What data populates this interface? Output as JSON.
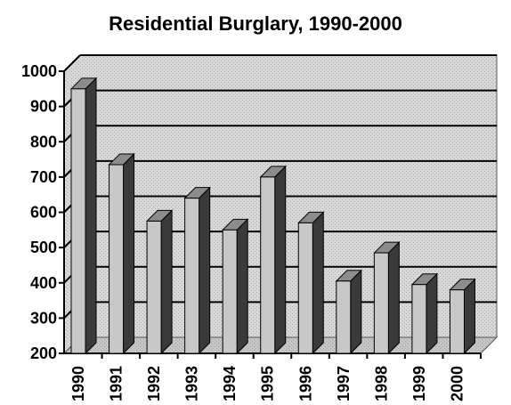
{
  "chart_data": {
    "type": "bar",
    "title": "Residential Burglary, 1990-2000",
    "xlabel": "",
    "ylabel": "",
    "categories": [
      "1990",
      "1991",
      "1992",
      "1993",
      "1994",
      "1995",
      "1996",
      "1997",
      "1998",
      "1999",
      "2000"
    ],
    "values": [
      950,
      735,
      575,
      640,
      550,
      700,
      570,
      405,
      485,
      395,
      380
    ],
    "ylim": [
      200,
      1000
    ],
    "yticks": [
      200,
      300,
      400,
      500,
      600,
      700,
      800,
      900,
      1000
    ],
    "grid": true,
    "legend": "none",
    "style": "3d-bars",
    "colors": {
      "bar_front": "#c8c8c8",
      "bar_side": "#3a3a3a",
      "bar_top": "#8c8c8c",
      "plot_bg": "#d6d6d6",
      "floor": "#c4c4c4"
    }
  }
}
